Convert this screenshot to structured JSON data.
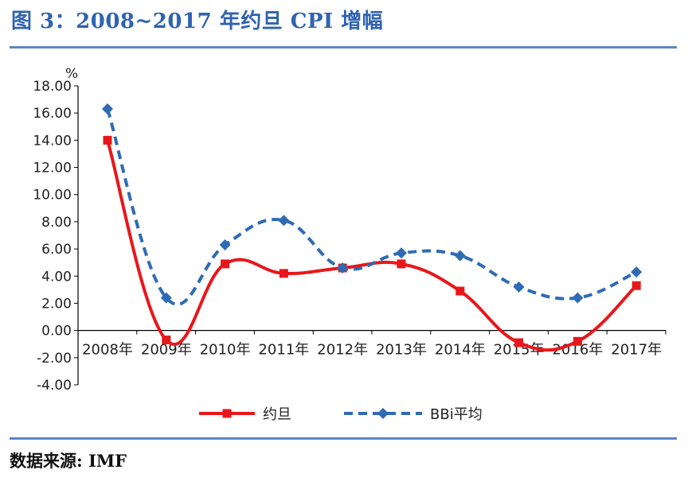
{
  "title": "图 3：2008~2017 年约旦 CPI 增幅",
  "source": "数据来源: IMF",
  "colors": {
    "accent": "#2f63b0",
    "series1": "#e8171b",
    "series2": "#2e6bb5"
  },
  "chart_data": {
    "type": "line",
    "unit_label": "%",
    "categories": [
      "2008年",
      "2009年",
      "2010年",
      "2011年",
      "2012年",
      "2013年",
      "2014年",
      "2015年",
      "2016年",
      "2017年"
    ],
    "yticks": [
      "18.00",
      "16.00",
      "14.00",
      "12.00",
      "10.00",
      "8.00",
      "6.00",
      "4.00",
      "2.00",
      "0.00",
      "-2.00",
      "-4.00"
    ],
    "ylim": [
      -4,
      18
    ],
    "grid": false,
    "legend_position": "bottom",
    "series": [
      {
        "name": "约旦",
        "marker": "square",
        "dash": "solid",
        "values": [
          14.0,
          -0.7,
          4.9,
          4.2,
          4.6,
          4.9,
          2.9,
          -0.9,
          -0.8,
          3.3
        ]
      },
      {
        "name": "BBi平均",
        "marker": "diamond",
        "dash": "dashed",
        "values": [
          16.3,
          2.4,
          6.3,
          8.1,
          4.6,
          5.7,
          5.5,
          3.2,
          2.4,
          4.3
        ]
      }
    ]
  }
}
